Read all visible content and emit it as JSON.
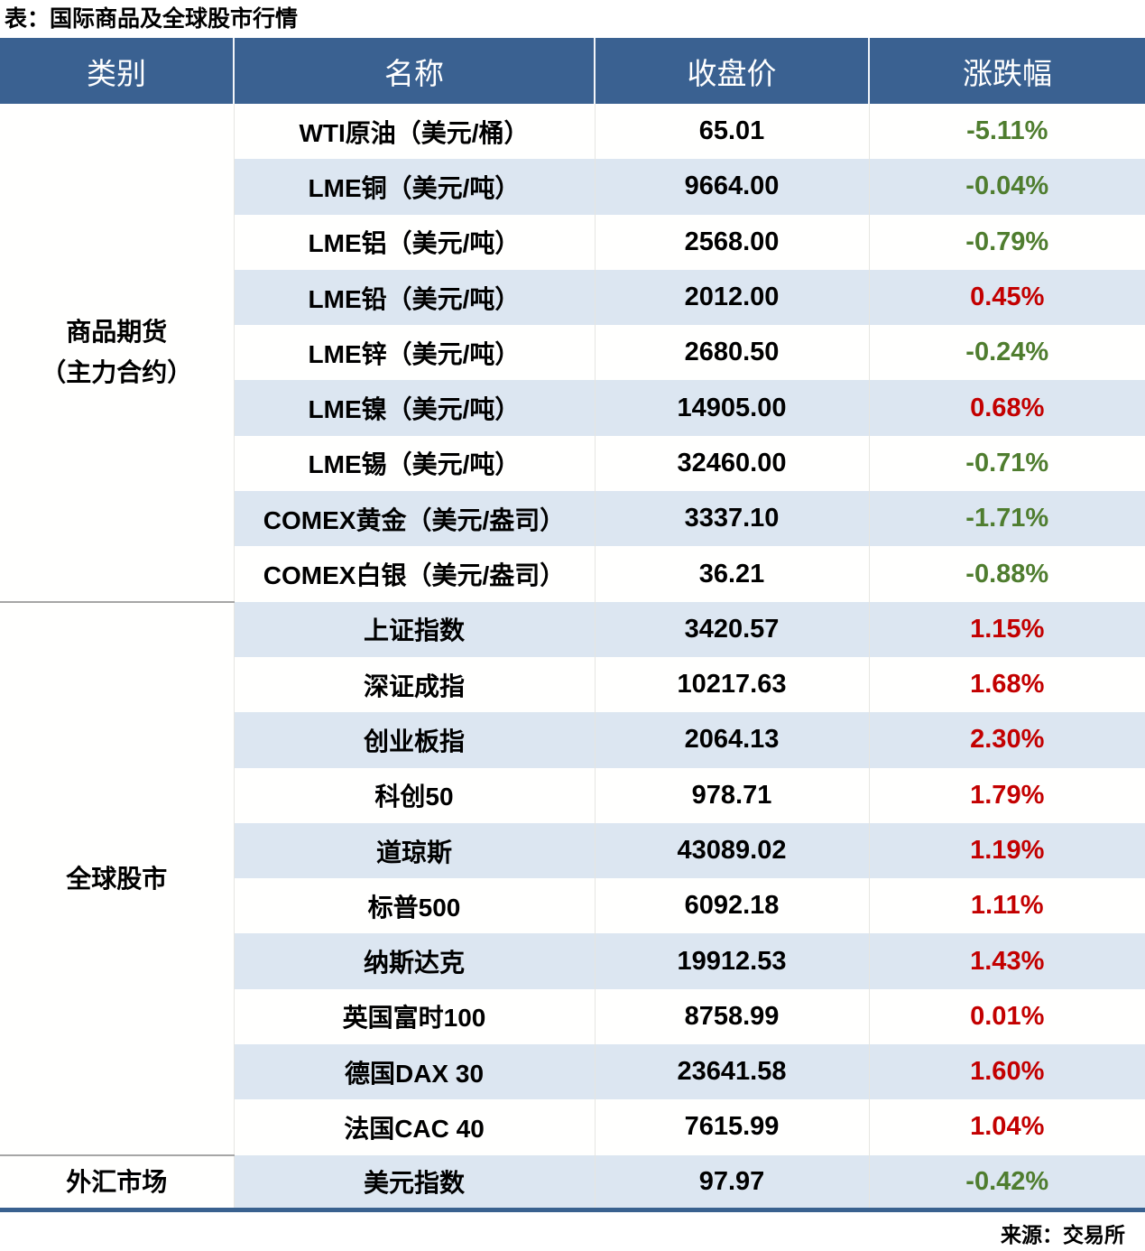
{
  "title": "表：国际商品及全球股市行情",
  "source": "来源：交易所",
  "colors": {
    "header_bg": "#3A6191",
    "header_text": "#FFFFFF",
    "band": "#DCE6F1",
    "row_bg": "#FFFFFE",
    "up": "#C30000",
    "down": "#4F7D2F",
    "grid_line": "#E6E6E2",
    "section_line": "#A6A6A6",
    "bottom_line": "#39618F",
    "text": "#000000"
  },
  "chart_data": {
    "type": "table",
    "title": "表：国际商品及全球股市行情",
    "source": "来源：交易所",
    "columns": [
      "类别",
      "名称",
      "收盘价",
      "涨跌幅"
    ],
    "categories": [
      {
        "lines": [
          "商品期货",
          "（主力合约）"
        ],
        "span": 9
      },
      {
        "lines": [
          "全球股市"
        ],
        "span": 10
      },
      {
        "lines": [
          "外汇市场"
        ],
        "span": 1
      }
    ],
    "rows": [
      {
        "name": "WTI原油（美元/桶）",
        "close": "65.01",
        "change": "-5.11%"
      },
      {
        "name": "LME铜（美元/吨）",
        "close": "9664.00",
        "change": "-0.04%"
      },
      {
        "name": "LME铝（美元/吨）",
        "close": "2568.00",
        "change": "-0.79%"
      },
      {
        "name": "LME铅（美元/吨）",
        "close": "2012.00",
        "change": "0.45%"
      },
      {
        "name": "LME锌（美元/吨）",
        "close": "2680.50",
        "change": "-0.24%"
      },
      {
        "name": "LME镍（美元/吨）",
        "close": "14905.00",
        "change": "0.68%"
      },
      {
        "name": "LME锡（美元/吨）",
        "close": "32460.00",
        "change": "-0.71%"
      },
      {
        "name": "COMEX黄金（美元/盎司）",
        "close": "3337.10",
        "change": "-1.71%"
      },
      {
        "name": "COMEX白银（美元/盎司）",
        "close": "36.21",
        "change": "-0.88%"
      },
      {
        "name": "上证指数",
        "close": "3420.57",
        "change": "1.15%"
      },
      {
        "name": "深证成指",
        "close": "10217.63",
        "change": "1.68%"
      },
      {
        "name": "创业板指",
        "close": "2064.13",
        "change": "2.30%"
      },
      {
        "name": "科创50",
        "close": "978.71",
        "change": "1.79%"
      },
      {
        "name": "道琼斯",
        "close": "43089.02",
        "change": "1.19%"
      },
      {
        "name": "标普500",
        "close": "6092.18",
        "change": "1.11%"
      },
      {
        "name": "纳斯达克",
        "close": "19912.53",
        "change": "1.43%"
      },
      {
        "name": "英国富时100",
        "close": "8758.99",
        "change": "0.01%"
      },
      {
        "name": "德国DAX 30",
        "close": "23641.58",
        "change": "1.60%"
      },
      {
        "name": "法国CAC 40",
        "close": "7615.99",
        "change": "1.04%"
      },
      {
        "name": "美元指数",
        "close": "97.97",
        "change": "-0.42%"
      }
    ]
  }
}
